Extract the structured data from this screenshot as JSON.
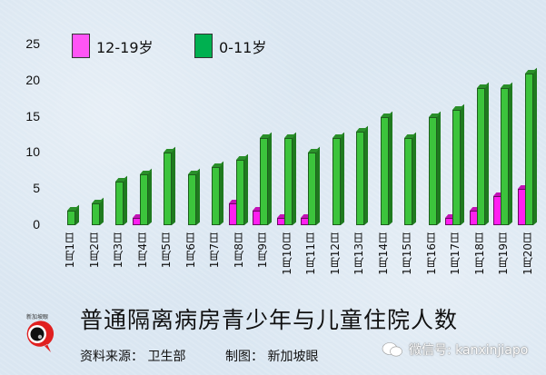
{
  "chart_data": {
    "type": "bar",
    "title": "普通隔离病房青少年与儿童住院人数",
    "xlabel": "",
    "ylabel": "",
    "ylim": [
      0,
      25
    ],
    "yticks": [
      0,
      5,
      10,
      15,
      20,
      25
    ],
    "grid": false,
    "legend_position": "top",
    "categories": [
      "1月1日",
      "1月2日",
      "1月3日",
      "1月4日",
      "1月5日",
      "1月6日",
      "1月7日",
      "1月8日",
      "1月9日",
      "1月10日",
      "1月11日",
      "1月12日",
      "1月13日",
      "1月14日",
      "1月15日",
      "1月16日",
      "1月17日",
      "1月18日",
      "1月19日",
      "1月20日"
    ],
    "series": [
      {
        "name": "12-19岁",
        "color": "#ff1ff0",
        "values": [
          0,
          0,
          0,
          1,
          0,
          0,
          0,
          3,
          2,
          1,
          1,
          0,
          0,
          0,
          0,
          0,
          1,
          2,
          4,
          5
        ]
      },
      {
        "name": "0-11岁",
        "color": "#3cc43c",
        "values": [
          2,
          3,
          6,
          7,
          10,
          7,
          8,
          9,
          12,
          12,
          10,
          12,
          13,
          15,
          12,
          15,
          16,
          19,
          19,
          21
        ]
      }
    ]
  },
  "legend": [
    {
      "label": "12-19岁",
      "color": "#ff55f5"
    },
    {
      "label": "0-11岁",
      "color": "#00b050"
    }
  ],
  "yaxis": {
    "ticks": [
      "25",
      "20",
      "15",
      "10",
      "5",
      "0"
    ]
  },
  "footer": {
    "title": "普通隔离病房青少年与儿童住院人数",
    "source": "资料来源：  卫生部",
    "maker": "制图：  新加坡眼",
    "logo_text": "新加坡眼",
    "watermark": "微信号: kanxinjiapo"
  }
}
